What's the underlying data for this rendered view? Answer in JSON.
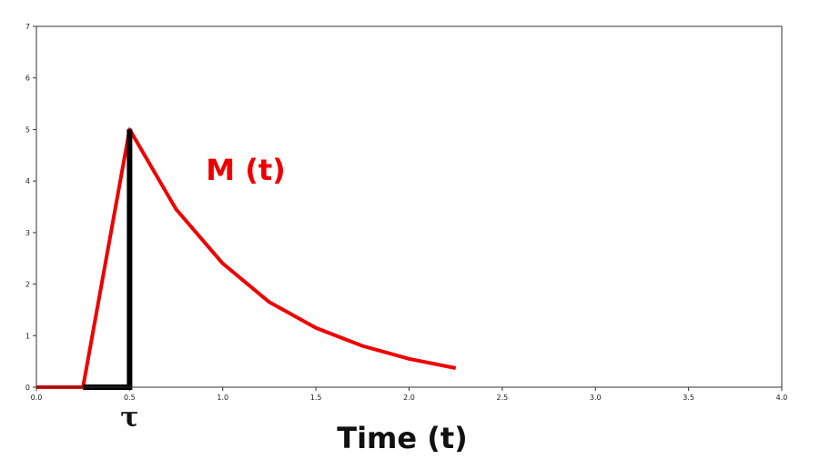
{
  "chart_data": {
    "type": "line",
    "title": "",
    "xlabel": "Time (t)",
    "ylabel": "",
    "xlim": [
      0,
      4
    ],
    "ylim": [
      0,
      7
    ],
    "xticks": [
      0.0,
      0.5,
      1.0,
      1.5,
      2.0,
      2.5,
      3.0,
      3.5,
      4.0
    ],
    "xtick_labels": [
      "0.0",
      "0.5",
      "1.0",
      "1.5",
      "2.0",
      "2.5",
      "3.0",
      "3.5",
      "4.0"
    ],
    "yticks": [
      0,
      1,
      2,
      3,
      4,
      5,
      6,
      7
    ],
    "ytick_labels": [
      "0",
      "1",
      "2",
      "3",
      "4",
      "5",
      "6",
      "7"
    ],
    "grid": false,
    "series": [
      {
        "name": "M (t)",
        "color": "#ee0000",
        "x": [
          0.0,
          0.25,
          0.5,
          0.75,
          1.0,
          1.25,
          1.5,
          1.75,
          2.0,
          2.25
        ],
        "y": [
          0.0,
          0.0,
          5.0,
          3.45,
          2.4,
          1.65,
          1.15,
          0.8,
          0.55,
          0.37
        ]
      }
    ],
    "annotations": [
      {
        "label": "τ",
        "color": "#000000",
        "x": [
          0.25,
          0.5,
          0.5
        ],
        "y": [
          0.0,
          0.0,
          5.0
        ],
        "tick_value": 0.5
      }
    ]
  }
}
